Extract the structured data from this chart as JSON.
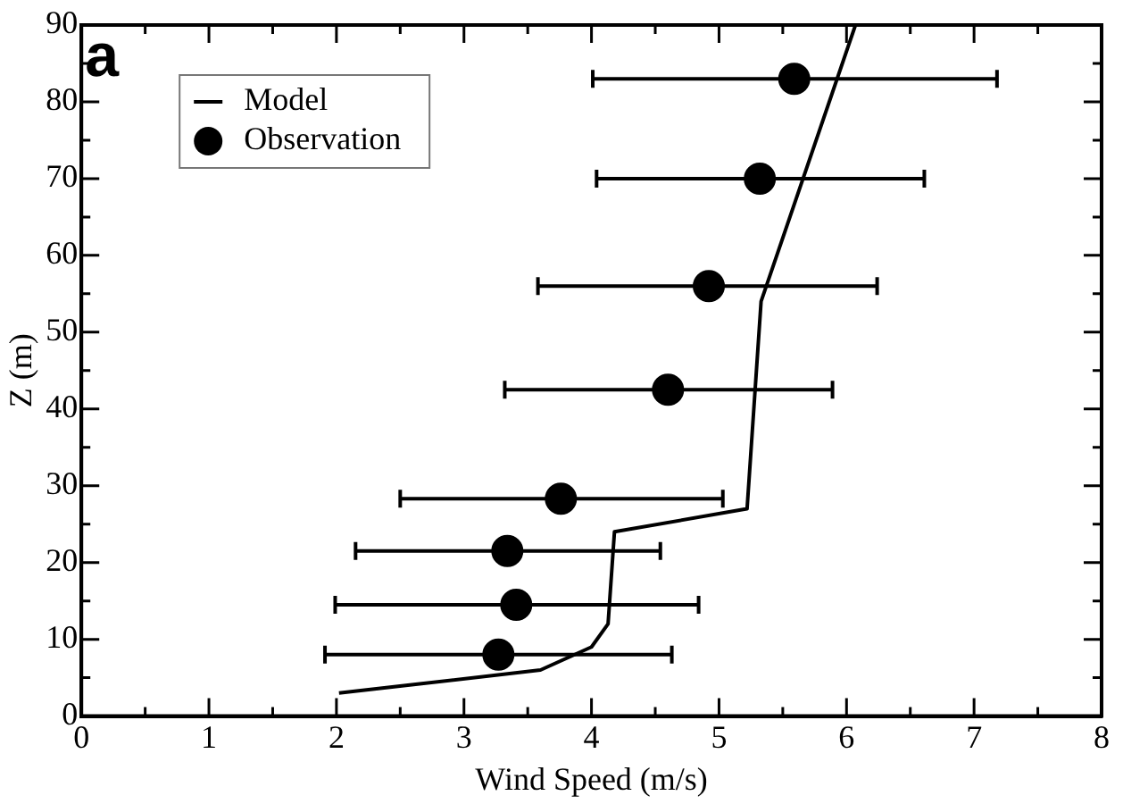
{
  "chart_data": {
    "type": "scatter",
    "xlabel": "Wind Speed (m/s)",
    "ylabel": "Z (m)",
    "annotations": [
      "a"
    ],
    "xlim": [
      0,
      8
    ],
    "ylim": [
      0,
      90
    ],
    "xticks": [
      0,
      {
        "value": 0.5,
        "label": null
      },
      1,
      {
        "value": 1.5,
        "label": null
      },
      2,
      {
        "value": 2.5,
        "label": null
      },
      3,
      {
        "value": 3.5,
        "label": null
      },
      4,
      {
        "value": 4.5,
        "label": null
      },
      5,
      {
        "value": 5.5,
        "label": null
      },
      6,
      {
        "value": 6.5,
        "label": null
      },
      7,
      {
        "value": 7.5,
        "label": null
      },
      8
    ],
    "yticks": [
      0,
      {
        "value": 5,
        "label": null
      },
      10,
      {
        "value": 15,
        "label": null
      },
      20,
      {
        "value": 25,
        "label": null
      },
      30,
      {
        "value": 35,
        "label": null
      },
      40,
      {
        "value": 45,
        "label": null
      },
      50,
      {
        "value": 55,
        "label": null
      },
      60,
      {
        "value": 65,
        "label": null
      },
      70,
      {
        "value": 75,
        "label": null
      },
      80,
      {
        "value": 85,
        "label": null
      },
      90
    ],
    "legend": "top left",
    "series": [
      {
        "name": "Model",
        "type": "line",
        "color": "#000000",
        "marker": "none",
        "line_style": "solid",
        "x": [
          2.02,
          3.6,
          4.0,
          4.13,
          4.18,
          5.22,
          5.33,
          6.07
        ],
        "values": [
          3,
          6,
          9,
          12,
          24,
          27,
          54,
          90
        ]
      },
      {
        "name": "Observation",
        "type": "scatter",
        "color": "#000000",
        "marker": "circle",
        "x": [
          5.59,
          5.32,
          4.92,
          4.6,
          3.76,
          3.34,
          3.41,
          3.27
        ],
        "values": [
          83,
          70,
          56,
          42.5,
          28.3,
          21.5,
          14.5,
          8
        ],
        "xerrors": [
          [
            4.01,
            7.18
          ],
          [
            4.04,
            6.61
          ],
          [
            3.58,
            6.24
          ],
          [
            3.32,
            5.89
          ],
          [
            2.5,
            5.03
          ],
          [
            2.15,
            4.54
          ],
          [
            1.99,
            4.84
          ],
          [
            1.91,
            4.63
          ]
        ]
      }
    ]
  }
}
